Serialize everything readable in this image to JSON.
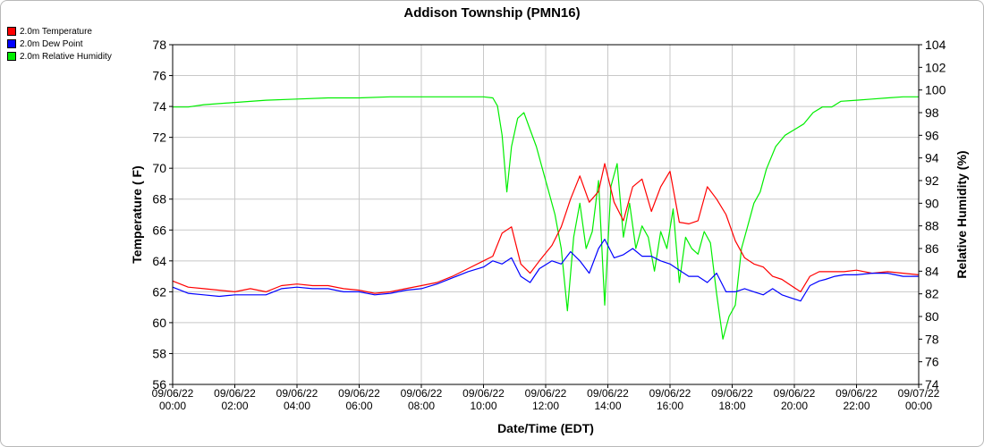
{
  "chart_data": {
    "type": "line",
    "title": "Addison Township (PMN16)",
    "xlabel": "Date/Time (EDT)",
    "ylabel_left": "Temperature ( F)",
    "ylabel_right": "Relative Humidity (%)",
    "ylim_left": [
      56,
      78
    ],
    "ylim_right": [
      74,
      104
    ],
    "grid": true,
    "legend_position": "top-left",
    "x_ticks": [
      {
        "hour": 0,
        "date": "09/06/22",
        "time": "00:00"
      },
      {
        "hour": 2,
        "date": "09/06/22",
        "time": "02:00"
      },
      {
        "hour": 4,
        "date": "09/06/22",
        "time": "04:00"
      },
      {
        "hour": 6,
        "date": "09/06/22",
        "time": "06:00"
      },
      {
        "hour": 8,
        "date": "09/06/22",
        "time": "08:00"
      },
      {
        "hour": 10,
        "date": "09/06/22",
        "time": "10:00"
      },
      {
        "hour": 12,
        "date": "09/06/22",
        "time": "12:00"
      },
      {
        "hour": 14,
        "date": "09/06/22",
        "time": "14:00"
      },
      {
        "hour": 16,
        "date": "09/06/22",
        "time": "16:00"
      },
      {
        "hour": 18,
        "date": "09/06/22",
        "time": "18:00"
      },
      {
        "hour": 20,
        "date": "09/06/22",
        "time": "20:00"
      },
      {
        "hour": 22,
        "date": "09/06/22",
        "time": "22:00"
      },
      {
        "hour": 24,
        "date": "09/07/22",
        "time": "00:00"
      }
    ],
    "y_ticks_left": [
      "56",
      "58",
      "60",
      "62",
      "64",
      "66",
      "68",
      "70",
      "72",
      "74",
      "76",
      "78"
    ],
    "y_ticks_right": [
      "74",
      "76",
      "78",
      "80",
      "82",
      "84",
      "86",
      "88",
      "90",
      "92",
      "94",
      "96",
      "98",
      "100",
      "102",
      "104"
    ],
    "series": [
      {
        "name": "2.0m Temperature",
        "axis": "left",
        "color": "#ff0000",
        "hours": [
          0,
          0.5,
          1,
          1.5,
          2,
          2.5,
          3,
          3.5,
          4,
          4.5,
          5,
          5.5,
          6,
          6.5,
          7,
          7.5,
          8,
          8.5,
          9,
          9.5,
          10,
          10.3,
          10.6,
          10.9,
          11.2,
          11.5,
          11.8,
          12.2,
          12.5,
          12.8,
          13.1,
          13.4,
          13.7,
          13.9,
          14.2,
          14.5,
          14.8,
          15.1,
          15.4,
          15.7,
          16.0,
          16.3,
          16.6,
          16.9,
          17.2,
          17.5,
          17.8,
          18.1,
          18.4,
          18.7,
          19.0,
          19.3,
          19.6,
          19.9,
          20.2,
          20.5,
          20.8,
          21.0,
          21.3,
          21.6,
          22.0,
          22.5,
          23.0,
          23.5,
          24.0
        ],
        "values": [
          62.7,
          62.3,
          62.2,
          62.1,
          62.0,
          62.2,
          62.0,
          62.4,
          62.5,
          62.4,
          62.4,
          62.2,
          62.1,
          61.9,
          62.0,
          62.2,
          62.4,
          62.6,
          63.0,
          63.5,
          64.0,
          64.3,
          65.8,
          66.2,
          63.8,
          63.2,
          64.0,
          65.0,
          66.2,
          68.0,
          69.5,
          67.8,
          68.5,
          70.3,
          67.8,
          66.6,
          68.8,
          69.3,
          67.2,
          68.8,
          69.8,
          66.5,
          66.4,
          66.6,
          68.8,
          68.0,
          67.0,
          65.3,
          64.2,
          63.8,
          63.6,
          63.0,
          62.8,
          62.4,
          62.0,
          63.0,
          63.3,
          63.3,
          63.3,
          63.3,
          63.4,
          63.2,
          63.3,
          63.2,
          63.1
        ]
      },
      {
        "name": "2.0m Dew Point",
        "axis": "left",
        "color": "#0000ff",
        "hours": [
          0,
          0.5,
          1,
          1.5,
          2,
          2.5,
          3,
          3.5,
          4,
          4.5,
          5,
          5.5,
          6,
          6.5,
          7,
          7.5,
          8,
          8.5,
          9,
          9.5,
          10,
          10.3,
          10.6,
          10.9,
          11.2,
          11.5,
          11.8,
          12.2,
          12.5,
          12.8,
          13.1,
          13.4,
          13.7,
          13.9,
          14.2,
          14.5,
          14.8,
          15.1,
          15.4,
          15.7,
          16.0,
          16.3,
          16.6,
          16.9,
          17.2,
          17.5,
          17.8,
          18.1,
          18.4,
          18.7,
          19.0,
          19.3,
          19.6,
          19.9,
          20.2,
          20.5,
          20.8,
          21.0,
          21.3,
          21.6,
          22.0,
          22.5,
          23.0,
          23.5,
          24.0
        ],
        "values": [
          62.3,
          61.9,
          61.8,
          61.7,
          61.8,
          61.8,
          61.8,
          62.2,
          62.3,
          62.2,
          62.2,
          62.0,
          62.0,
          61.8,
          61.9,
          62.1,
          62.2,
          62.5,
          62.9,
          63.3,
          63.6,
          64.0,
          63.8,
          64.2,
          63.0,
          62.6,
          63.5,
          64.0,
          63.8,
          64.6,
          64.0,
          63.2,
          64.8,
          65.4,
          64.2,
          64.4,
          64.8,
          64.3,
          64.3,
          64.0,
          63.8,
          63.4,
          63.0,
          63.0,
          62.6,
          63.2,
          62.0,
          62.0,
          62.2,
          62.0,
          61.8,
          62.2,
          61.8,
          61.6,
          61.4,
          62.4,
          62.7,
          62.8,
          63.0,
          63.1,
          63.1,
          63.2,
          63.2,
          63.0,
          63.0
        ]
      },
      {
        "name": "2.0m Relative Humidity",
        "axis": "right",
        "color": "#00ee00",
        "hours": [
          0,
          0.5,
          1,
          2,
          3,
          4,
          5,
          6,
          7,
          8,
          9,
          10,
          10.3,
          10.45,
          10.6,
          10.75,
          10.9,
          11.1,
          11.3,
          11.5,
          11.7,
          11.9,
          12.1,
          12.3,
          12.5,
          12.7,
          12.9,
          13.1,
          13.3,
          13.5,
          13.7,
          13.9,
          14.1,
          14.3,
          14.5,
          14.7,
          14.9,
          15.1,
          15.3,
          15.5,
          15.7,
          15.9,
          16.1,
          16.3,
          16.5,
          16.7,
          16.9,
          17.1,
          17.3,
          17.5,
          17.7,
          17.9,
          18.1,
          18.3,
          18.5,
          18.7,
          18.9,
          19.1,
          19.4,
          19.7,
          20.0,
          20.3,
          20.6,
          20.9,
          21.2,
          21.5,
          22.0,
          22.5,
          23.0,
          23.5,
          24.0
        ],
        "values": [
          98.5,
          98.5,
          98.7,
          98.9,
          99.1,
          99.2,
          99.3,
          99.3,
          99.4,
          99.4,
          99.4,
          99.4,
          99.3,
          98.6,
          96.0,
          91.0,
          95.0,
          97.5,
          98.0,
          96.5,
          95.0,
          93.0,
          91.0,
          89.0,
          86.0,
          80.5,
          87.0,
          90.0,
          86.0,
          87.5,
          92.0,
          81.0,
          91.5,
          93.5,
          87.0,
          90.0,
          86.0,
          88.0,
          87.0,
          84.0,
          87.5,
          86.0,
          89.5,
          83.0,
          87.0,
          86.0,
          85.5,
          87.5,
          86.5,
          82.0,
          78.0,
          80.0,
          81.0,
          86.0,
          88.0,
          90.0,
          91.0,
          93.0,
          95.0,
          96.0,
          96.5,
          97.0,
          98.0,
          98.5,
          98.5,
          99.0,
          99.1,
          99.2,
          99.3,
          99.4,
          99.4
        ]
      }
    ]
  }
}
